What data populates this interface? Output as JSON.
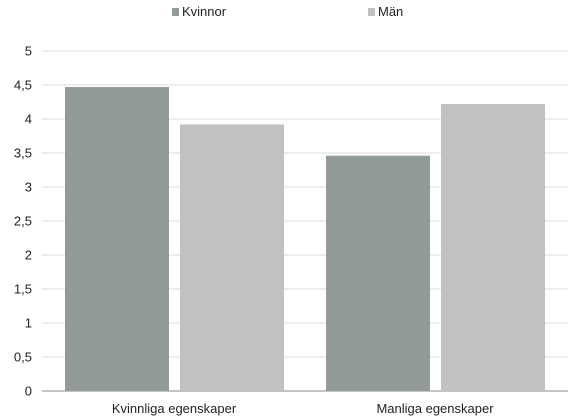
{
  "chart_data": {
    "type": "bar",
    "title": "",
    "xlabel": "",
    "ylabel": "",
    "categories": [
      "Kvinnliga egenskaper",
      "Manliga egenskaper"
    ],
    "series": [
      {
        "name": "Kvinnor",
        "color": "#929b97",
        "values": [
          4.47,
          3.46
        ]
      },
      {
        "name": "Män",
        "color": "#c1c1c1",
        "values": [
          3.92,
          4.22
        ]
      }
    ],
    "ylim": [
      0,
      5
    ],
    "yticks": [
      "0",
      "0,5",
      "1",
      "1,5",
      "2",
      "2,5",
      "3",
      "3,5",
      "4",
      "4,5",
      "5"
    ],
    "grid": true,
    "legend": "top-center"
  }
}
